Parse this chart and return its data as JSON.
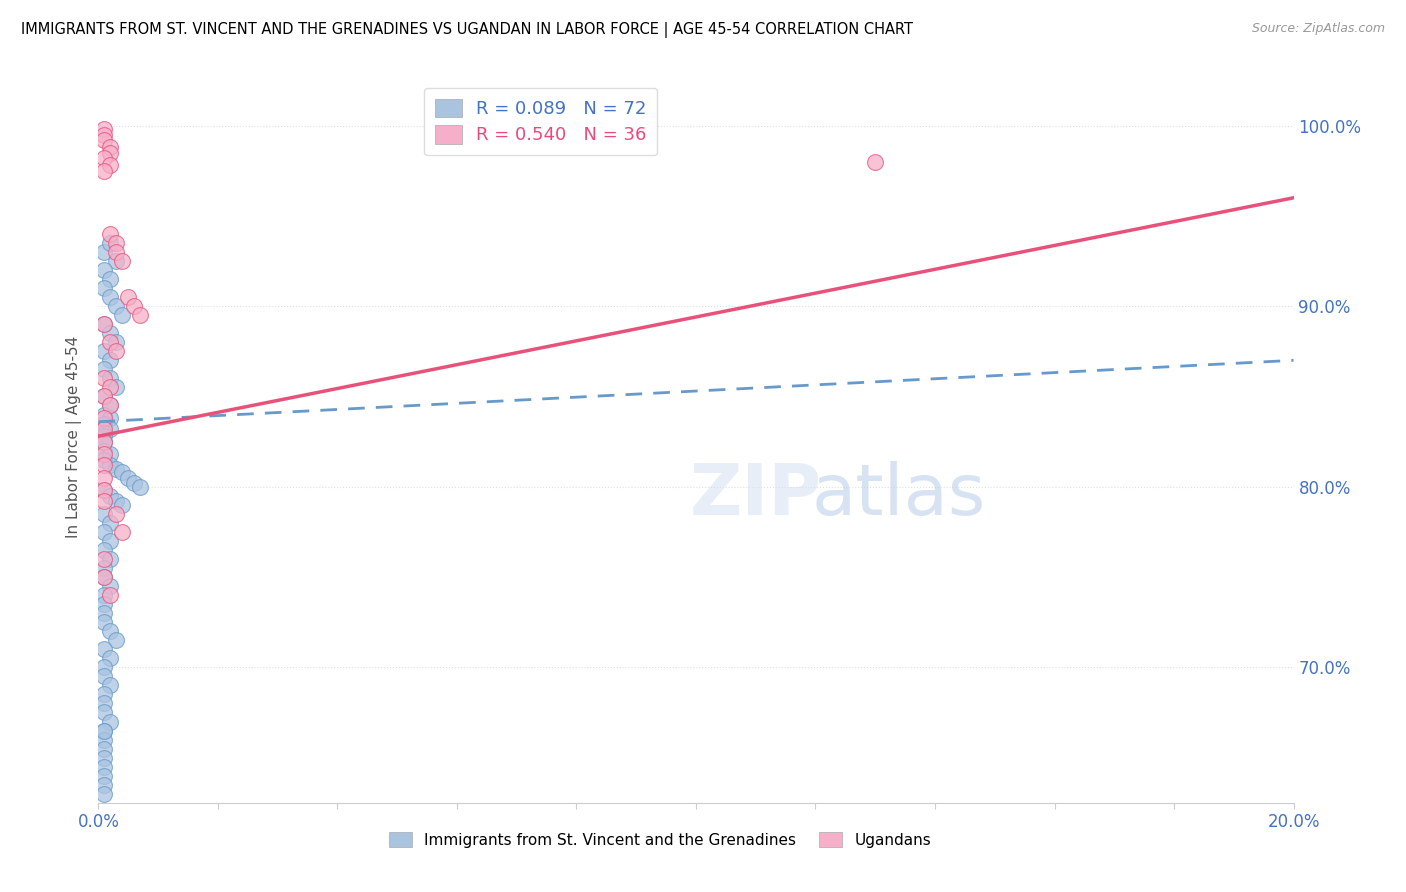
{
  "title": "IMMIGRANTS FROM ST. VINCENT AND THE GRENADINES VS UGANDAN IN LABOR FORCE | AGE 45-54 CORRELATION CHART",
  "source": "Source: ZipAtlas.com",
  "ylabel": "In Labor Force | Age 45-54",
  "xlim": [
    0.0,
    0.2
  ],
  "ylim": [
    0.625,
    1.03
  ],
  "xticks": [
    0.0,
    0.02,
    0.04,
    0.06,
    0.08,
    0.1,
    0.12,
    0.14,
    0.16,
    0.18,
    0.2
  ],
  "xticklabels": [
    "0.0%",
    "",
    "",
    "",
    "",
    "",
    "",
    "",
    "",
    "",
    "20.0%"
  ],
  "yticks": [
    0.7,
    0.8,
    0.9,
    1.0
  ],
  "yticklabels": [
    "70.0%",
    "80.0%",
    "90.0%",
    "100.0%"
  ],
  "blue_R": 0.089,
  "blue_N": 72,
  "pink_R": 0.54,
  "pink_N": 36,
  "blue_color": "#aac4e0",
  "pink_color": "#f5afc8",
  "blue_line_color": "#6699cc",
  "pink_line_color": "#e8527a",
  "blue_legend_color": "#4472c4",
  "pink_legend_color": "#e84b7a",
  "grid_color": "#e0e0e0",
  "grid_style": "dotted",
  "blue_scatter_x": [
    0.001,
    0.002,
    0.003,
    0.001,
    0.002,
    0.001,
    0.002,
    0.003,
    0.004,
    0.001,
    0.002,
    0.003,
    0.001,
    0.002,
    0.001,
    0.002,
    0.003,
    0.001,
    0.002,
    0.001,
    0.002,
    0.001,
    0.002,
    0.001,
    0.001,
    0.001,
    0.001,
    0.002,
    0.001,
    0.002,
    0.003,
    0.004,
    0.005,
    0.006,
    0.007,
    0.001,
    0.002,
    0.003,
    0.004,
    0.001,
    0.002,
    0.001,
    0.002,
    0.001,
    0.002,
    0.001,
    0.001,
    0.002,
    0.001,
    0.001,
    0.001,
    0.001,
    0.002,
    0.003,
    0.001,
    0.002,
    0.001,
    0.001,
    0.002,
    0.001,
    0.001,
    0.001,
    0.002,
    0.001,
    0.001,
    0.001,
    0.001,
    0.001,
    0.001,
    0.001,
    0.001,
    0.001
  ],
  "blue_scatter_y": [
    0.93,
    0.935,
    0.925,
    0.92,
    0.915,
    0.91,
    0.905,
    0.9,
    0.895,
    0.89,
    0.885,
    0.88,
    0.875,
    0.87,
    0.865,
    0.86,
    0.855,
    0.85,
    0.845,
    0.84,
    0.838,
    0.835,
    0.832,
    0.83,
    0.828,
    0.825,
    0.82,
    0.818,
    0.815,
    0.812,
    0.81,
    0.808,
    0.805,
    0.802,
    0.8,
    0.798,
    0.795,
    0.792,
    0.79,
    0.785,
    0.78,
    0.775,
    0.77,
    0.765,
    0.76,
    0.755,
    0.75,
    0.745,
    0.74,
    0.735,
    0.73,
    0.725,
    0.72,
    0.715,
    0.71,
    0.705,
    0.7,
    0.695,
    0.69,
    0.685,
    0.68,
    0.675,
    0.67,
    0.665,
    0.66,
    0.655,
    0.65,
    0.645,
    0.64,
    0.635,
    0.63,
    0.665
  ],
  "pink_scatter_x": [
    0.001,
    0.001,
    0.001,
    0.002,
    0.002,
    0.001,
    0.002,
    0.001,
    0.002,
    0.003,
    0.003,
    0.004,
    0.005,
    0.006,
    0.007,
    0.001,
    0.002,
    0.003,
    0.001,
    0.002,
    0.001,
    0.002,
    0.001,
    0.001,
    0.001,
    0.001,
    0.001,
    0.001,
    0.001,
    0.001,
    0.003,
    0.004,
    0.13,
    0.001,
    0.001,
    0.002
  ],
  "pink_scatter_y": [
    0.998,
    0.995,
    0.992,
    0.988,
    0.985,
    0.982,
    0.978,
    0.975,
    0.94,
    0.935,
    0.93,
    0.925,
    0.905,
    0.9,
    0.895,
    0.89,
    0.88,
    0.875,
    0.86,
    0.855,
    0.85,
    0.845,
    0.838,
    0.832,
    0.825,
    0.818,
    0.812,
    0.805,
    0.798,
    0.792,
    0.785,
    0.775,
    0.98,
    0.76,
    0.75,
    0.74
  ],
  "blue_line_x0": 0.0,
  "blue_line_y0": 0.836,
  "blue_line_x1": 0.2,
  "blue_line_y1": 0.87,
  "pink_line_x0": 0.0,
  "pink_line_y0": 0.828,
  "pink_line_x1": 0.2,
  "pink_line_y1": 0.96
}
